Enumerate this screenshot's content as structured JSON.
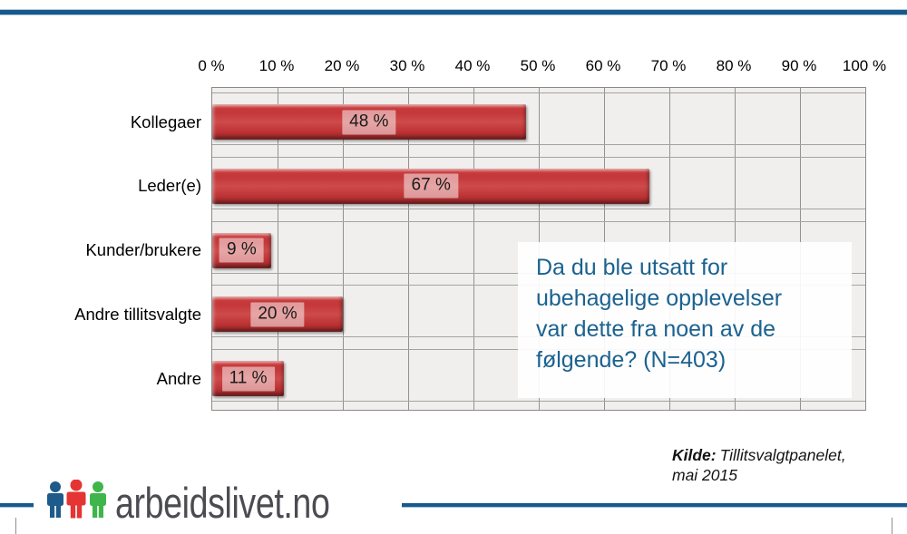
{
  "chart_data": {
    "type": "bar",
    "orientation": "horizontal",
    "categories": [
      "Kollegaer",
      "Leder(e)",
      "Kunder/brukere",
      "Andre tillitsvalgte",
      "Andre"
    ],
    "values": [
      48,
      67,
      9,
      20,
      11
    ],
    "value_labels": [
      "48 %",
      "67 %",
      "9 %",
      "20 %",
      "11 %"
    ],
    "x_ticks": [
      "0 %",
      "10 %",
      "20 %",
      "30 %",
      "40 %",
      "50 %",
      "60 %",
      "70 %",
      "80 %",
      "90 %",
      "100 %"
    ],
    "xlim": [
      0,
      100
    ],
    "grid": true,
    "legend": false,
    "bar_color": "#C63C3E",
    "plot_bg": "#F0EFED",
    "annotation": {
      "text": "Da du ble utsatt for\nubehagelige opplevelser\nvar dette fra noen av de\nfølgende? (N=403)",
      "color": "#1B628F"
    }
  },
  "source": {
    "label": "Kilde:",
    "name": "Tillitsvalgtpanelet,",
    "date": "mai 2015"
  },
  "logo": {
    "text": "arbeidslivet.no",
    "people_colors": [
      "#1E5B8B",
      "#E43434",
      "#3FB54B"
    ]
  },
  "colors": {
    "rule_blue": "#17598B",
    "logo_text": "#4B4B52",
    "question_text": "#1B628F"
  }
}
